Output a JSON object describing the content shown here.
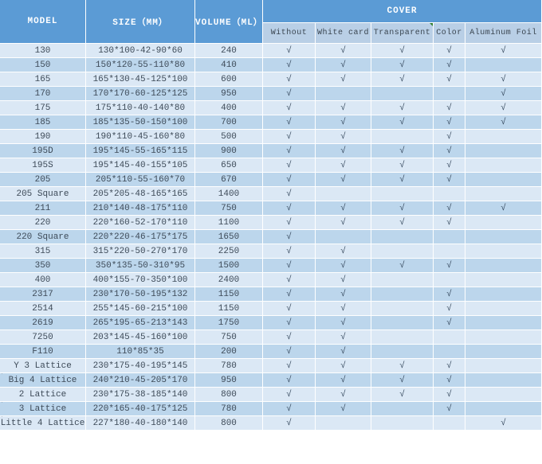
{
  "table": {
    "header": {
      "model": "MODEL",
      "size": "SIZE（MM）",
      "volume": "VOLUME（ML）",
      "cover": "COVER",
      "cover_types": [
        "Without",
        "White card",
        "Transparent",
        "Color",
        "Aluminum Foil"
      ]
    },
    "check_glyph": "√",
    "stray_mark_glyph": "'",
    "rows": [
      {
        "model": "130",
        "size": "130*100-42-90*60",
        "volume": "240",
        "covers": [
          1,
          1,
          1,
          1,
          1
        ],
        "left_mark": false
      },
      {
        "model": "150",
        "size": "150*120-55-110*80",
        "volume": "410",
        "covers": [
          1,
          1,
          1,
          1,
          0
        ],
        "left_mark": false
      },
      {
        "model": "165",
        "size": "165*130-45-125*100",
        "volume": "600",
        "covers": [
          1,
          1,
          1,
          1,
          1
        ],
        "left_mark": false
      },
      {
        "model": "170",
        "size": "170*170-60-125*125",
        "volume": "950",
        "covers": [
          1,
          0,
          0,
          0,
          1
        ],
        "left_mark": false
      },
      {
        "model": "175",
        "size": "175*110-40-140*80",
        "volume": "400",
        "covers": [
          1,
          1,
          1,
          1,
          1
        ],
        "left_mark": false
      },
      {
        "model": "185",
        "size": "185*135-50-150*100",
        "volume": "700",
        "covers": [
          1,
          1,
          1,
          1,
          1
        ],
        "left_mark": false
      },
      {
        "model": "190",
        "size": "190*110-45-160*80",
        "volume": "500",
        "covers": [
          1,
          1,
          0,
          1,
          0
        ],
        "left_mark": false
      },
      {
        "model": "195D",
        "size": "195*145-55-165*115",
        "volume": "900",
        "covers": [
          1,
          1,
          1,
          1,
          0
        ],
        "left_mark": false
      },
      {
        "model": "195S",
        "size": "195*145-40-155*105",
        "volume": "650",
        "covers": [
          1,
          1,
          1,
          1,
          0
        ],
        "left_mark": false
      },
      {
        "model": "205",
        "size": "205*110-55-160*70",
        "volume": "670",
        "covers": [
          1,
          1,
          1,
          1,
          0
        ],
        "left_mark": false
      },
      {
        "model": "205 Square",
        "size": "205*205-48-165*165",
        "volume": "1400",
        "covers": [
          1,
          0,
          0,
          0,
          0
        ],
        "left_mark": false
      },
      {
        "model": "211",
        "size": "210*140-48-175*110",
        "volume": "750",
        "covers": [
          1,
          1,
          1,
          1,
          1
        ],
        "left_mark": false
      },
      {
        "model": "220",
        "size": "220*160-52-170*110",
        "volume": "1100",
        "covers": [
          1,
          1,
          1,
          1,
          0
        ],
        "left_mark": false
      },
      {
        "model": "220 Square",
        "size": "220*220-46-175*175",
        "volume": "1650",
        "covers": [
          1,
          0,
          0,
          0,
          0
        ],
        "left_mark": false
      },
      {
        "model": "315",
        "size": "315*220-50-270*170",
        "volume": "2250",
        "covers": [
          1,
          1,
          0,
          0,
          0
        ],
        "left_mark": false
      },
      {
        "model": "350",
        "size": "350*135-50-310*95",
        "volume": "1500",
        "covers": [
          1,
          1,
          1,
          1,
          0
        ],
        "left_mark": false
      },
      {
        "model": "400",
        "size": "400*155-70-350*100",
        "volume": "2400",
        "covers": [
          1,
          1,
          0,
          0,
          0
        ],
        "left_mark": false
      },
      {
        "model": "2317",
        "size": "230*170-50-195*132",
        "volume": "1150",
        "covers": [
          1,
          1,
          0,
          1,
          0
        ],
        "left_mark": false
      },
      {
        "model": "2514",
        "size": "255*145-60-215*100",
        "volume": "1150",
        "covers": [
          1,
          1,
          0,
          1,
          0
        ],
        "left_mark": false
      },
      {
        "model": "2619",
        "size": "265*195-65-213*143",
        "volume": "1750",
        "covers": [
          1,
          1,
          0,
          1,
          0
        ],
        "left_mark": false
      },
      {
        "model": "7250",
        "size": "203*145-45-160*100",
        "volume": "750",
        "covers": [
          1,
          1,
          0,
          0,
          0
        ],
        "left_mark": false
      },
      {
        "model": "F110",
        "size": "110*85*35",
        "volume": "200",
        "covers": [
          1,
          1,
          0,
          0,
          0
        ],
        "left_mark": false
      },
      {
        "model": "Y 3 Lattice",
        "size": "230*175-40-195*145",
        "volume": "780",
        "covers": [
          1,
          1,
          1,
          1,
          0
        ],
        "left_mark": false
      },
      {
        "model": "Big 4 Lattice",
        "size": "240*210-45-205*170",
        "volume": "950",
        "covers": [
          1,
          1,
          1,
          1,
          0
        ],
        "left_mark": true
      },
      {
        "model": "2 Lattice",
        "size": "230*175-38-185*140",
        "volume": "800",
        "covers": [
          1,
          1,
          1,
          1,
          0
        ],
        "left_mark": false
      },
      {
        "model": "3 Lattice",
        "size": "220*165-40-175*125",
        "volume": "780",
        "covers": [
          1,
          1,
          0,
          1,
          0
        ],
        "left_mark": true
      },
      {
        "model": "Little 4 Lattice",
        "size": "227*180-40-180*140",
        "volume": "800",
        "covers": [
          1,
          0,
          0,
          0,
          1
        ],
        "left_mark": true
      }
    ]
  },
  "colors": {
    "header_blue": "#5b9bd5",
    "subheader_blue": "#b9cfe6",
    "row_light": "#dbe8f5",
    "row_dark": "#bcd6ec",
    "gridline": "#ffffff",
    "text": "#3d4a58",
    "check": "#34475c",
    "comment_flag_green": "#2e7d32"
  }
}
